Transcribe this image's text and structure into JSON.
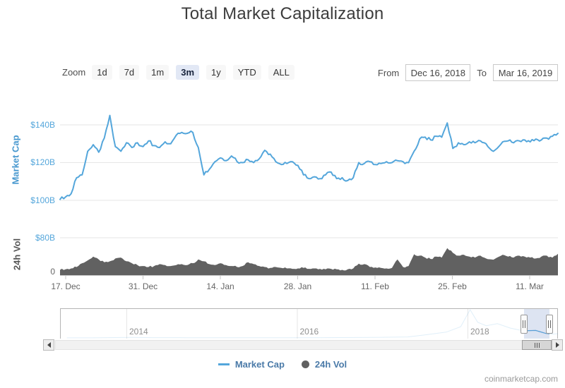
{
  "title": "Total Market Capitalization",
  "range_selector": {
    "zoom_label": "Zoom",
    "buttons": [
      "1d",
      "7d",
      "1m",
      "3m",
      "1y",
      "YTD",
      "ALL"
    ],
    "selected": "3m",
    "from_label": "From",
    "from_value": "Dec 16, 2018",
    "to_label": "To",
    "to_value": "Mar 16, 2019"
  },
  "chart_data": {
    "type": "line",
    "title": "Total Market Capitalization",
    "x_range": [
      "Dec 16, 2018",
      "Mar 16, 2019"
    ],
    "x_tick_labels": [
      "17. Dec",
      "31. Dec",
      "14. Jan",
      "28. Jan",
      "11. Feb",
      "25. Feb",
      "11. Mar"
    ],
    "y_axis_market_cap": {
      "title": "Market Cap",
      "tick_labels_top_to_bottom": [
        "$140B",
        "$120B",
        "$100B"
      ],
      "tick_values": [
        140,
        120,
        100
      ],
      "unit": "USD billions"
    },
    "y_axis_volume": {
      "title": "24h Vol",
      "tick_labels_top_to_bottom": [
        "$80B",
        "0"
      ],
      "tick_values": [
        80,
        0
      ],
      "unit": "USD billions"
    },
    "series": [
      {
        "name": "Market Cap",
        "type": "line",
        "color": "#54a6db",
        "frequency": "daily, Dec 16 2018 - Mar 16 2019",
        "values_usd_billions": [
          100.5,
          101.8,
          103.5,
          112,
          113.5,
          126,
          129.5,
          125.5,
          133,
          145,
          128.5,
          126,
          130.5,
          128,
          130.5,
          128.5,
          131.5,
          129,
          128,
          131,
          130,
          134.5,
          136,
          135.5,
          136,
          128,
          113.5,
          116.5,
          120.5,
          122.5,
          121,
          123.5,
          120.5,
          120,
          121.5,
          120,
          122,
          126.5,
          124.5,
          120.5,
          119,
          119.5,
          120.5,
          118.5,
          113.5,
          111.5,
          112.5,
          111.5,
          113.5,
          115,
          111.5,
          112,
          110.5,
          112,
          120,
          119.5,
          120.5,
          119,
          119.5,
          120.5,
          120,
          121,
          120.5,
          120,
          126,
          132.5,
          133.5,
          132,
          134,
          133.5,
          141,
          127.5,
          130.5,
          129.5,
          131,
          130.5,
          131.5,
          130,
          126.5,
          127.5,
          131,
          131.5,
          130.5,
          131.5,
          132,
          131,
          132.5,
          132,
          133,
          134,
          135.5
        ]
      },
      {
        "name": "24h Vol",
        "type": "area",
        "color": "#616161",
        "frequency": "daily, Dec 16 2018 - Mar 16 2019",
        "values_usd_billions": [
          12,
          13,
          15,
          18,
          26,
          32,
          40,
          34,
          28,
          30,
          36,
          38,
          30,
          26,
          22,
          20,
          18,
          20,
          24,
          22,
          20,
          22,
          24,
          22,
          26,
          34,
          30,
          24,
          22,
          26,
          22,
          20,
          18,
          20,
          28,
          24,
          20,
          18,
          16,
          18,
          16,
          15,
          14,
          15,
          16,
          14,
          15,
          14,
          13,
          14,
          13,
          12,
          13,
          15,
          25,
          24,
          18,
          17,
          16,
          15,
          16,
          34,
          18,
          20,
          45,
          42,
          38,
          35,
          40,
          38,
          58,
          48,
          42,
          44,
          40,
          38,
          42,
          36,
          34,
          38,
          44,
          40,
          38,
          42,
          40,
          38,
          36,
          40,
          42,
          38,
          46
        ]
      }
    ],
    "navigator": {
      "year_labels": [
        "2014",
        "2016",
        "2018"
      ],
      "series_years": [
        2013.3,
        2013.6,
        2013.95,
        2014.05,
        2014.3,
        2014.7,
        2015.1,
        2015.5,
        2015.9,
        2016.3,
        2016.7,
        2017.0,
        2017.3,
        2017.5,
        2017.75,
        2017.92,
        2018.03,
        2018.12,
        2018.22,
        2018.35,
        2018.5,
        2018.65,
        2018.8,
        2018.92,
        2019.0,
        2019.07,
        2019.15
      ],
      "series_values_usd_billions": [
        1.5,
        2,
        12,
        14,
        9,
        6,
        4,
        4.5,
        5,
        8,
        12,
        18,
        30,
        90,
        170,
        330,
        830,
        460,
        360,
        420,
        290,
        210,
        220,
        130,
        112,
        125,
        134
      ]
    },
    "legend_position": "bottom-center",
    "grid": "horizontal lines on"
  },
  "legend": {
    "text_color": "#4a7aa8",
    "items": [
      {
        "label": "Market Cap",
        "marker": "line",
        "color": "#54a6db"
      },
      {
        "label": "24h Vol",
        "marker": "circle",
        "color": "#616161"
      }
    ]
  },
  "watermark": "coinmarketcap.com"
}
